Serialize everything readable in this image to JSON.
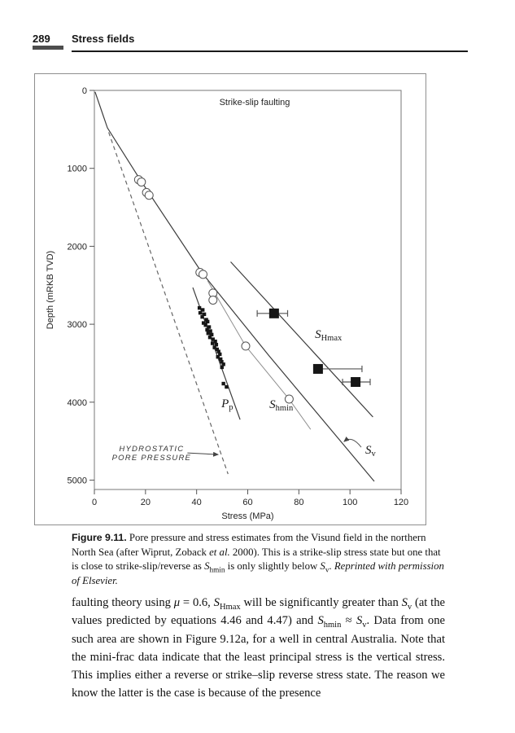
{
  "page": {
    "page_number": "289",
    "running_head": "Stress fields"
  },
  "figure": {
    "caption_label": "Figure 9.11.",
    "caption_segments": [
      {
        "t": "  Pore pressure and stress estimates from the Visund field in the northern North Sea (after Wiprut, Zoback "
      },
      {
        "t": "et al.",
        "i": true
      },
      {
        "t": " 2000). This is a strike-slip stress state but one that is close to strike-slip/reverse as "
      },
      {
        "t": "S",
        "i": true
      },
      {
        "t": "hmin",
        "sub": true
      },
      {
        "t": " is only slightly below "
      },
      {
        "t": "S",
        "i": true
      },
      {
        "t": "v",
        "sub": true
      },
      {
        "t": ". "
      },
      {
        "t": "Reprinted with permission of Elsevier.",
        "i": true
      }
    ]
  },
  "body": {
    "segments": [
      {
        "t": "faulting theory using "
      },
      {
        "t": "μ",
        "i": true
      },
      {
        "t": " = 0.6, "
      },
      {
        "t": "S",
        "i": true
      },
      {
        "t": "Hmax",
        "sub": true
      },
      {
        "t": " will be significantly greater than "
      },
      {
        "t": "S",
        "i": true
      },
      {
        "t": "v",
        "sub": true
      },
      {
        "t": " (at the values predicted by equations 4.46 and 4.47) and "
      },
      {
        "t": "S",
        "i": true
      },
      {
        "t": "hmin",
        "sub": true
      },
      {
        "t": " ≈ "
      },
      {
        "t": "S",
        "i": true
      },
      {
        "t": "v",
        "sub": true
      },
      {
        "t": ". Data from one such area are shown in Figure 9.12a, for a well in central Australia. Note that the mini-frac data indicate that the least principal stress is the vertical stress. This implies either a reverse or strike–slip reverse stress state. The reason we know the latter is the case is because of the presence"
      }
    ]
  },
  "chart_data": {
    "type": "scatter",
    "title": "Strike-slip faulting",
    "xlabel": "Stress (MPa)",
    "ylabel": "Depth (mRKB TVD)",
    "xlim": [
      0,
      120
    ],
    "ylim": [
      0,
      5120
    ],
    "xticks": [
      0,
      20,
      40,
      60,
      80,
      100,
      120
    ],
    "yticks": [
      0,
      1000,
      2000,
      3000,
      4000,
      5000
    ],
    "grid": false,
    "colors": {
      "ink": "#222222",
      "line_dark": "#3c3c3c",
      "line_thin": "#8f8f8f",
      "dash": "#666666",
      "marker_fill": "#161616"
    },
    "series": [
      {
        "name": "Sv vertical stress line",
        "style": "solid",
        "points": [
          [
            0.3,
            20
          ],
          [
            5.1,
            480
          ],
          [
            17.8,
            1140
          ],
          [
            41.9,
            2330
          ],
          [
            68.2,
            3400
          ],
          [
            109.5,
            5015
          ]
        ]
      },
      {
        "name": "SHmax line",
        "style": "solid",
        "points": [
          [
            53.3,
            2200
          ],
          [
            109.0,
            4190
          ]
        ]
      },
      {
        "name": "Shmin line",
        "style": "thin",
        "points": [
          [
            44.3,
            2443
          ],
          [
            59.2,
            3281
          ],
          [
            76.2,
            3962
          ],
          [
            84.6,
            4349
          ]
        ]
      },
      {
        "name": "Pp pore-pressure line",
        "style": "solid",
        "points": [
          [
            38.5,
            2530
          ],
          [
            57.0,
            4223
          ]
        ]
      },
      {
        "name": "Hydrostatic pore pressure",
        "style": "dashed",
        "points": [
          [
            5.6,
            537
          ],
          [
            52.3,
            4921
          ]
        ]
      }
    ],
    "lot_circles": [
      [
        17.3,
        1145
      ],
      [
        18.4,
        1175
      ],
      [
        20.4,
        1310
      ],
      [
        21.4,
        1345
      ],
      [
        41.3,
        2335
      ],
      [
        42.5,
        2360
      ],
      [
        46.4,
        2600
      ],
      [
        46.4,
        2690
      ],
      [
        59.2,
        3280
      ],
      [
        76.2,
        3960
      ]
    ],
    "pp_squares": [
      [
        41.1,
        2791
      ],
      [
        42.4,
        2816
      ],
      [
        41.4,
        2854
      ],
      [
        43.0,
        2872
      ],
      [
        42.2,
        2906
      ],
      [
        43.8,
        2942
      ],
      [
        44.3,
        2966
      ],
      [
        42.7,
        2984
      ],
      [
        43.5,
        3011
      ],
      [
        44.9,
        3036
      ],
      [
        44.1,
        3071
      ],
      [
        45.4,
        3088
      ],
      [
        44.5,
        3116
      ],
      [
        45.9,
        3133
      ],
      [
        45.2,
        3168
      ],
      [
        46.4,
        3193
      ],
      [
        47.3,
        3220
      ],
      [
        46.2,
        3245
      ],
      [
        47.7,
        3262
      ],
      [
        47.0,
        3298
      ],
      [
        48.0,
        3322
      ],
      [
        48.6,
        3350
      ],
      [
        49.1,
        3385
      ],
      [
        48.3,
        3419
      ],
      [
        49.4,
        3448
      ],
      [
        49.8,
        3482
      ],
      [
        50.5,
        3514
      ],
      [
        49.9,
        3552
      ],
      [
        50.5,
        3762
      ],
      [
        51.7,
        3804
      ]
    ],
    "shmax_squares": [
      {
        "x": 70.3,
        "depth": 2861,
        "x_min": 63.7,
        "x_max": 75.6
      },
      {
        "x": 87.5,
        "depth": 3573,
        "x_min": 86.0,
        "x_max": 104.7
      },
      {
        "x": 102.2,
        "depth": 3741,
        "x_min": 97.1,
        "x_max": 107.9
      }
    ],
    "annotations": [
      {
        "id": "pp-label",
        "main": "P",
        "sub": "p",
        "x": 51.6,
        "depth": 4024
      },
      {
        "id": "shmin-label",
        "main": "S",
        "sub": "hmin",
        "x": 70.4,
        "depth": 4034
      },
      {
        "id": "shmax-label",
        "main": "S",
        "sub": "Hmax",
        "x": 88.2,
        "depth": 3133
      },
      {
        "id": "sv-label",
        "main": "S",
        "sub": "v",
        "x": 107.9,
        "depth": 4620
      },
      {
        "id": "hydrostatic-label",
        "lines": [
          "HYDROSTATIC",
          "PORE PRESSURE"
        ],
        "x": 22.4,
        "depth": 4683
      }
    ],
    "arrows": [
      {
        "id": "hydrostatic-arrow",
        "from": [
          36.4,
          4651
        ],
        "to": [
          48.4,
          4672
        ],
        "curved": false
      },
      {
        "id": "sv-arrow",
        "from": [
          104.4,
          4578
        ],
        "to": [
          97.7,
          4505
        ],
        "curved": true
      }
    ]
  }
}
